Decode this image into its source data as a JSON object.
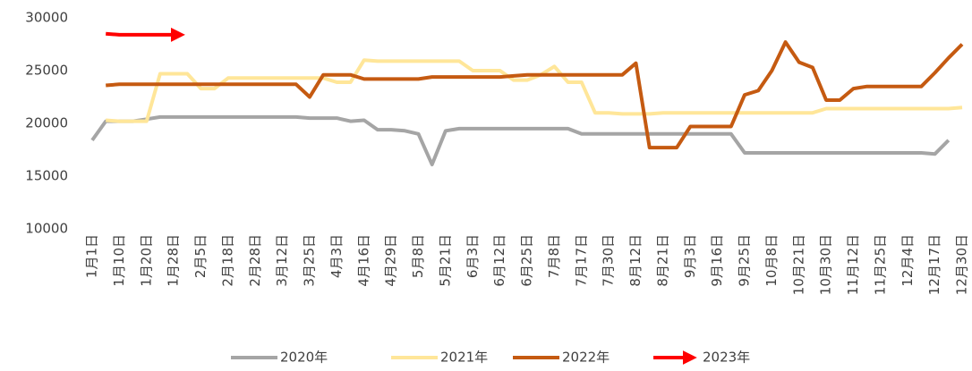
{
  "chart_data": {
    "type": "line",
    "categories": [
      "1月1日",
      null,
      "1月10日",
      null,
      "1月20日",
      null,
      "1月28日",
      null,
      "2月5日",
      null,
      "2月18日",
      null,
      "2月28日",
      null,
      "3月12日",
      null,
      "3月25日",
      null,
      "4月3日",
      null,
      "4月16日",
      null,
      "4月29日",
      null,
      "5月8日",
      null,
      "5月21日",
      null,
      "6月3日",
      null,
      "6月12日",
      null,
      "6月25日",
      null,
      "7月8日",
      null,
      "7月17日",
      null,
      "7月30日",
      null,
      "8月12日",
      null,
      "8月21日",
      null,
      "9月3日",
      null,
      "9月16日",
      null,
      "9月25日",
      null,
      "10月8日",
      null,
      "10月21日",
      null,
      "10月30日",
      null,
      "11月12日",
      null,
      "11月25日",
      null,
      "12月4日",
      null,
      "12月17日",
      null,
      "12月30日"
    ],
    "series": [
      {
        "name": "2020年",
        "color": "#a5a5a5",
        "values": [
          18400,
          20200,
          20200,
          20200,
          20400,
          20600,
          20600,
          20600,
          20600,
          20600,
          20600,
          20600,
          20600,
          20600,
          20600,
          20600,
          20500,
          20500,
          20500,
          20200,
          20300,
          19400,
          19400,
          19300,
          19000,
          16100,
          19300,
          19500,
          19500,
          19500,
          19500,
          19500,
          19500,
          19500,
          19500,
          19500,
          19000,
          19000,
          19000,
          19000,
          19000,
          19000,
          19000,
          19000,
          19000,
          19000,
          19000,
          19000,
          17200,
          17200,
          17200,
          17200,
          17200,
          17200,
          17200,
          17200,
          17200,
          17200,
          17200,
          17200,
          17200,
          17200,
          17100,
          18400,
          null
        ]
      },
      {
        "name": "2021年",
        "color": "#ffe699",
        "values": [
          null,
          20300,
          20200,
          20200,
          20200,
          24700,
          24700,
          24700,
          23300,
          23300,
          24300,
          24300,
          24300,
          24300,
          24300,
          24300,
          24300,
          24300,
          23900,
          23900,
          26000,
          25900,
          25900,
          25900,
          25900,
          25900,
          25900,
          25900,
          25000,
          25000,
          25000,
          24100,
          24100,
          24600,
          25400,
          23900,
          23900,
          21000,
          21000,
          20900,
          20900,
          20900,
          21000,
          21000,
          21000,
          21000,
          21000,
          21000,
          21000,
          21000,
          21000,
          21000,
          21000,
          21000,
          21400,
          21400,
          21400,
          21400,
          21400,
          21400,
          21400,
          21400,
          21400,
          21400,
          21500
        ]
      },
      {
        "name": "2022年",
        "color": "#c55a11",
        "values": [
          null,
          23600,
          23700,
          23700,
          23700,
          23700,
          23700,
          23700,
          23700,
          23700,
          23700,
          23700,
          23700,
          23700,
          23700,
          23700,
          22500,
          24600,
          24600,
          24600,
          24200,
          24200,
          24200,
          24200,
          24200,
          24400,
          24400,
          24400,
          24400,
          24400,
          24400,
          24500,
          24600,
          24600,
          24600,
          24600,
          24600,
          24600,
          24600,
          24600,
          25700,
          17700,
          17700,
          17700,
          19700,
          19700,
          19700,
          19700,
          22700,
          23100,
          25000,
          27700,
          25800,
          25300,
          22200,
          22200,
          23300,
          23500,
          23500,
          23500,
          23500,
          23500,
          24800,
          26200,
          27500
        ]
      },
      {
        "name": "2023年",
        "color": "#ff0000",
        "values": [
          null,
          28500,
          28400,
          28400,
          28400,
          28400,
          28400,
          null,
          null,
          null,
          null,
          null,
          null,
          null,
          null,
          null,
          null,
          null,
          null,
          null,
          null,
          null,
          null,
          null,
          null,
          null,
          null,
          null,
          null,
          null,
          null,
          null,
          null,
          null,
          null,
          null,
          null,
          null,
          null,
          null,
          null,
          null,
          null,
          null,
          null,
          null,
          null,
          null,
          null,
          null,
          null,
          null,
          null,
          null,
          null,
          null,
          null,
          null,
          null,
          null,
          null,
          null,
          null,
          null,
          null
        ]
      }
    ],
    "ylim": [
      10000,
      30000
    ],
    "yticks": [
      10000,
      15000,
      20000,
      25000,
      30000
    ],
    "grid": false,
    "legend": "bottom"
  }
}
